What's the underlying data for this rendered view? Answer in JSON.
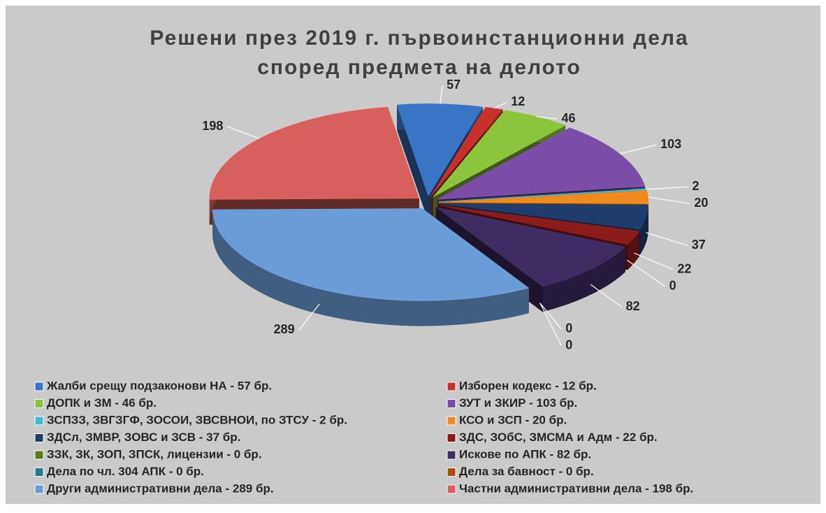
{
  "chart_data": {
    "type": "pie3d",
    "title": [
      "Решени през 2019 г. първоинстанционни дела",
      "според предмета на делото"
    ],
    "categories": [
      "Жалби срещу подзаконови НА - 57 бр.",
      "Изборен кодекс - 12 бр.",
      "ДОПК и ЗМ - 46 бр.",
      "ЗУТ и ЗКИР - 103 бр.",
      "ЗСПЗЗ, ЗВГЗГФ, ЗОСОИ, ЗВСВНОИ, по ЗТСУ - 2 бр.",
      "КСО и ЗСП - 20 бр.",
      "ЗДСл, ЗМВР, ЗОВС и ЗСВ - 37 бр.",
      "ЗДС, ЗОбС, ЗМСМА и Адм - 22 бр.",
      "ЗЗК, ЗК, ЗОП, ЗПСК, лицензии - 0 бр.",
      "Искове по АПК - 82 бр.",
      "Дела по чл. 304 АПК - 0 бр.",
      "Дела за бавност - 0 бр.",
      "Други административни дела - 289 бр.",
      "Частни административни дела - 198 бр."
    ],
    "values": [
      57,
      12,
      46,
      103,
      2,
      20,
      37,
      22,
      0,
      82,
      0,
      0,
      289,
      198
    ],
    "colors": [
      "#3a74c4",
      "#c8302c",
      "#8cc43c",
      "#7a4ea8",
      "#40bcd0",
      "#f08a1c",
      "#1e3d6c",
      "#8a1c1c",
      "#5c7a20",
      "#3e2c62",
      "#247888",
      "#b04c06",
      "#6a9cd8",
      "#d8605c"
    ],
    "legend": "bottom"
  }
}
